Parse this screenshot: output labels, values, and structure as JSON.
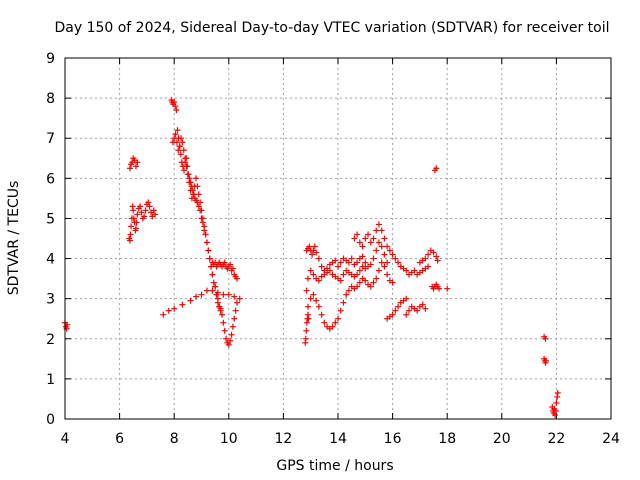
{
  "chart_data": {
    "type": "scatter",
    "title": "Day 150 of 2024, Sidereal Day-to-day VTEC variation (SDTVAR) for receiver toil",
    "xlabel": "GPS time / hours",
    "ylabel": "SDTVAR / TECUs",
    "xlim": [
      4,
      24
    ],
    "ylim": [
      0,
      9
    ],
    "x_ticks": [
      "4",
      "6",
      "8",
      "10",
      "12",
      "14",
      "16",
      "18",
      "20",
      "22",
      "24"
    ],
    "y_ticks": [
      "0",
      "1",
      "2",
      "3",
      "4",
      "5",
      "6",
      "7",
      "8",
      "9"
    ],
    "grid": true,
    "marker": "plus",
    "color": "#ff0000",
    "series": [
      {
        "name": "SDTVAR",
        "segments": [
          {
            "x": [
              4.0,
              4.03,
              4.06,
              4.08
            ],
            "y": [
              2.4,
              2.3,
              2.25,
              2.35
            ]
          },
          {
            "x": [
              6.38,
              6.42,
              6.46,
              6.5,
              6.55,
              6.6,
              6.65
            ],
            "y": [
              6.25,
              6.35,
              6.4,
              6.5,
              6.45,
              6.3,
              6.4
            ]
          },
          {
            "x": [
              6.35,
              6.38,
              6.4,
              6.42,
              6.45,
              6.48,
              6.5,
              6.52,
              6.55,
              6.58,
              6.6,
              6.62,
              6.65,
              6.7,
              6.75,
              6.8,
              6.85,
              6.9,
              6.95,
              7.0,
              7.05,
              7.1,
              7.15,
              7.2,
              7.25,
              7.3
            ],
            "y": [
              4.5,
              4.45,
              4.6,
              4.8,
              5.0,
              5.3,
              5.2,
              5.0,
              4.9,
              4.7,
              4.75,
              4.9,
              5.1,
              5.25,
              5.3,
              5.15,
              5.0,
              5.05,
              5.2,
              5.35,
              5.4,
              5.3,
              5.15,
              5.05,
              5.2,
              5.1
            ]
          },
          {
            "x": [
              7.6,
              7.8,
              8.0,
              8.3,
              8.6,
              8.8,
              9.0,
              9.2,
              9.4,
              9.6,
              9.8,
              10.0,
              10.2,
              10.4
            ],
            "y": [
              2.6,
              2.7,
              2.75,
              2.85,
              2.95,
              3.05,
              3.1,
              3.2,
              3.2,
              3.15,
              3.1,
              3.1,
              3.05,
              3.0
            ]
          },
          {
            "x": [
              7.9,
              7.93,
              7.96,
              8.0,
              8.04,
              8.08,
              8.12,
              8.16,
              8.2,
              8.24,
              8.28,
              8.32,
              8.36,
              8.4,
              8.44,
              8.48,
              8.52,
              8.56,
              8.6,
              8.64,
              8.68,
              8.72,
              8.76,
              8.8,
              8.85,
              8.9,
              8.95,
              9.0,
              9.05,
              9.1,
              9.15,
              9.2,
              9.25,
              9.3,
              9.35,
              9.4,
              9.45,
              9.5,
              9.55,
              9.6,
              9.65,
              9.7
            ],
            "y": [
              7.95,
              7.9,
              7.85,
              7.9,
              7.8,
              7.7,
              7.2,
              7.0,
              6.8,
              6.6,
              6.4,
              6.3,
              6.2,
              6.4,
              6.5,
              6.3,
              6.1,
              6.0,
              5.9,
              5.8,
              5.7,
              5.6,
              5.5,
              5.45,
              5.4,
              5.3,
              5.2,
              5.0,
              4.9,
              4.7,
              4.6,
              4.4,
              4.2,
              4.0,
              3.8,
              3.6,
              3.4,
              3.3,
              3.1,
              2.9,
              2.8,
              2.75
            ]
          },
          {
            "x": [
              7.95,
              8.0,
              8.05,
              8.1,
              8.15,
              8.2,
              8.25,
              8.3,
              8.35,
              8.4,
              8.45,
              8.5,
              8.55,
              8.6,
              8.65,
              8.7,
              8.75,
              8.8,
              8.85,
              8.9,
              8.95,
              9.0,
              9.05,
              9.1,
              9.15,
              9.2,
              9.25,
              9.3,
              9.35,
              9.4
            ],
            "y": [
              6.9,
              7.0,
              7.1,
              6.9,
              6.7,
              6.8,
              7.0,
              6.9,
              6.7,
              6.5,
              6.3,
              6.1,
              5.9,
              5.7,
              5.5,
              5.6,
              5.8,
              6.0,
              5.8,
              5.6,
              5.4,
              5.2,
              5.0,
              4.8,
              4.6,
              4.4,
              4.2,
              4.0,
              3.8,
              3.6
            ]
          },
          {
            "x": [
              9.4,
              9.45,
              9.5,
              9.55,
              9.6,
              9.65,
              9.7,
              9.75,
              9.8,
              9.85,
              9.9,
              9.95,
              10.0,
              10.05,
              10.1,
              10.15,
              10.2,
              10.25,
              10.3
            ],
            "y": [
              3.9,
              3.85,
              3.9,
              3.8,
              3.85,
              3.9,
              3.85,
              3.8,
              3.85,
              3.9,
              3.8,
              3.75,
              3.8,
              3.85,
              3.7,
              3.75,
              3.6,
              3.55,
              3.5
            ]
          },
          {
            "x": [
              9.5,
              9.55,
              9.6,
              9.65,
              9.7,
              9.75,
              9.8,
              9.85,
              9.9,
              9.95,
              10.0,
              10.05,
              10.1,
              10.15,
              10.2,
              10.25,
              10.3
            ],
            "y": [
              3.3,
              3.1,
              3.0,
              2.8,
              2.7,
              2.6,
              2.4,
              2.2,
              2.0,
              1.9,
              1.85,
              1.95,
              2.1,
              2.3,
              2.5,
              2.7,
              2.9
            ]
          },
          {
            "x": [
              12.8,
              12.82,
              12.84,
              12.86,
              12.88,
              12.9,
              12.92
            ],
            "y": [
              1.9,
              2.0,
              2.2,
              2.4,
              2.5,
              2.6,
              2.5
            ]
          },
          {
            "x": [
              12.85,
              12.9,
              12.95,
              13.0,
              13.05,
              13.1,
              13.15,
              13.2,
              13.3,
              13.4,
              13.5,
              13.6,
              13.7,
              13.8,
              13.9,
              14.0,
              14.1,
              14.2,
              14.3,
              14.4,
              14.5,
              14.6,
              14.7,
              14.8,
              14.9,
              15.0,
              15.1,
              15.2,
              15.3,
              15.4,
              15.5,
              15.6,
              15.7,
              15.8
            ],
            "y": [
              4.2,
              4.25,
              4.3,
              4.2,
              4.1,
              4.2,
              4.3,
              4.15,
              4.0,
              3.8,
              3.7,
              3.75,
              3.85,
              3.9,
              3.95,
              3.8,
              3.9,
              4.0,
              3.95,
              3.9,
              4.0,
              3.85,
              3.9,
              4.0,
              4.05,
              3.9,
              3.8,
              3.85,
              4.0,
              4.2,
              4.4,
              4.3,
              4.1,
              3.9
            ]
          },
          {
            "x": [
              12.85,
              12.9,
              13.0,
              13.1,
              13.2,
              13.3,
              13.4,
              13.5,
              13.6,
              13.7,
              13.8,
              13.9,
              14.0,
              14.1,
              14.2,
              14.3,
              14.4,
              14.5,
              14.6,
              14.7,
              14.8,
              14.9,
              15.0
            ],
            "y": [
              3.2,
              3.5,
              3.7,
              3.6,
              3.5,
              3.45,
              3.55,
              3.6,
              3.65,
              3.7,
              3.6,
              3.55,
              3.5,
              3.45,
              3.6,
              3.7,
              3.65,
              3.6,
              3.55,
              3.6,
              3.7,
              3.8,
              3.75
            ]
          },
          {
            "x": [
              12.9,
              13.0,
              13.1,
              13.2,
              13.3,
              13.4,
              13.5,
              13.6,
              13.7,
              13.8,
              13.9,
              14.0,
              14.1,
              14.2,
              14.3,
              14.4,
              14.5,
              14.6,
              14.7,
              14.8,
              14.9,
              15.0,
              15.1,
              15.2,
              15.3,
              15.4,
              15.5,
              15.6,
              15.7,
              15.8,
              15.9,
              16.0
            ],
            "y": [
              2.8,
              3.0,
              3.1,
              2.95,
              2.8,
              2.6,
              2.4,
              2.3,
              2.25,
              2.3,
              2.4,
              2.5,
              2.7,
              2.9,
              3.1,
              3.2,
              3.3,
              3.25,
              3.3,
              3.4,
              3.5,
              3.45,
              3.35,
              3.3,
              3.4,
              3.5,
              3.7,
              3.9,
              3.8,
              3.6,
              3.45,
              3.4
            ]
          },
          {
            "x": [
              14.6,
              14.7,
              14.8,
              14.9,
              15.0,
              15.1,
              15.2,
              15.3,
              15.4,
              15.5,
              15.6,
              15.7,
              15.8,
              15.9,
              16.0,
              16.1,
              16.2,
              16.3,
              16.4,
              16.5,
              16.6,
              16.7,
              16.8,
              16.9,
              17.0,
              17.1,
              17.2,
              17.3
            ],
            "y": [
              4.5,
              4.6,
              4.4,
              4.3,
              4.5,
              4.6,
              4.4,
              4.5,
              4.7,
              4.85,
              4.7,
              4.5,
              4.3,
              4.2,
              4.1,
              4.0,
              3.9,
              3.8,
              3.75,
              3.7,
              3.6,
              3.65,
              3.7,
              3.6,
              3.65,
              3.7,
              3.75,
              3.8
            ]
          },
          {
            "x": [
              15.8,
              15.9,
              16.0,
              16.1,
              16.2,
              16.3,
              16.4,
              16.5
            ],
            "y": [
              2.5,
              2.55,
              2.6,
              2.7,
              2.8,
              2.9,
              2.95,
              3.0
            ]
          },
          {
            "x": [
              16.5,
              16.6,
              16.7,
              16.8,
              16.9,
              17.0,
              17.1,
              17.2
            ],
            "y": [
              2.6,
              2.7,
              2.8,
              2.75,
              2.7,
              2.8,
              2.85,
              2.75
            ]
          },
          {
            "x": [
              17.0,
              17.1,
              17.2,
              17.3,
              17.4,
              17.5,
              17.6,
              17.65
            ],
            "y": [
              3.9,
              3.95,
              4.0,
              4.1,
              4.2,
              4.15,
              4.05,
              3.95
            ]
          },
          {
            "x": [
              17.45,
              17.5,
              17.55,
              17.6,
              17.65,
              17.7
            ],
            "y": [
              3.3,
              3.25,
              3.3,
              3.35,
              3.3,
              3.25
            ]
          },
          {
            "x": [
              17.55,
              17.6
            ],
            "y": [
              6.2,
              6.25
            ]
          },
          {
            "x": [
              18.0
            ],
            "y": [
              3.25
            ]
          },
          {
            "x": [
              21.55,
              21.6
            ],
            "y": [
              2.05,
              2.0
            ]
          },
          {
            "x": [
              21.55,
              21.58,
              21.6,
              21.62
            ],
            "y": [
              1.5,
              1.45,
              1.4,
              1.45
            ]
          },
          {
            "x": [
              21.85,
              21.88,
              21.9,
              21.92,
              21.95,
              21.98,
              22.0,
              22.03,
              22.05
            ],
            "y": [
              0.3,
              0.2,
              0.15,
              0.25,
              0.1,
              0.2,
              0.4,
              0.55,
              0.65
            ]
          }
        ]
      }
    ]
  }
}
